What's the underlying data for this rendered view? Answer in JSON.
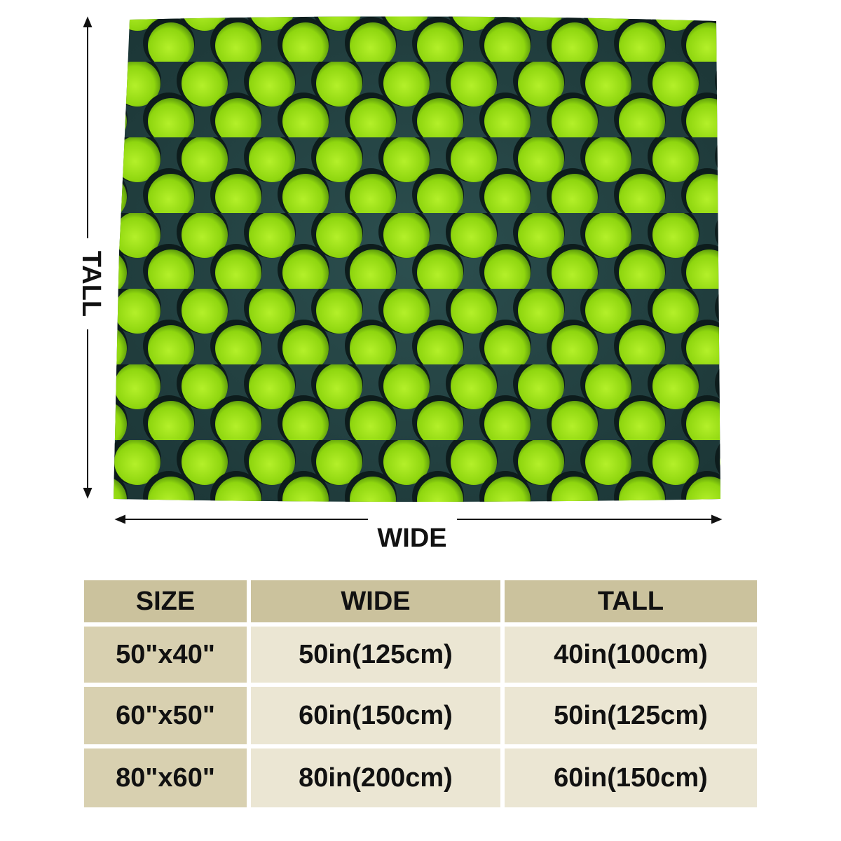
{
  "dimension_labels": {
    "tall": "TALL",
    "wide": "WIDE"
  },
  "table": {
    "header": [
      "SIZE",
      "WIDE",
      "TALL"
    ],
    "rows": [
      [
        "50\"x40\"",
        "50in(125cm)",
        "40in(100cm)"
      ],
      [
        "60\"x50\"",
        "60in(150cm)",
        "50in(125cm)"
      ],
      [
        "80\"x60\"",
        "80in(200cm)",
        "60in(150cm)"
      ]
    ]
  }
}
